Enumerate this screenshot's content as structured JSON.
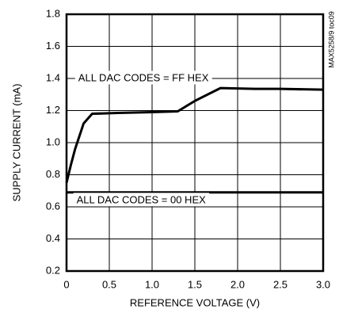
{
  "chart_data": {
    "type": "line",
    "x_label": "REFERENCE VOLTAGE (V)",
    "y_label": "SUPPLY CURRENT (mA)",
    "side_note": "MAX5258/9 toc09",
    "series": [
      {
        "name": "ALL DAC CODES = FF HEX",
        "color": "#000000",
        "x": [
          0,
          0.05,
          0.1,
          0.2,
          0.3,
          0.6,
          1.0,
          1.3,
          1.5,
          1.8,
          2.2,
          2.5,
          3.0
        ],
        "values": [
          0.75,
          0.86,
          0.96,
          1.12,
          1.18,
          1.185,
          1.19,
          1.195,
          1.26,
          1.34,
          1.335,
          1.335,
          1.33
        ]
      },
      {
        "name": "ALL DAC CODES = 00 HEX",
        "color": "#000000",
        "x": [
          0,
          3.0
        ],
        "values": [
          0.69,
          0.69
        ]
      }
    ],
    "xlim": [
      0,
      3.0
    ],
    "xticks": [
      0,
      0.5,
      {
        "value": 1,
        "label": "1.0"
      },
      1.5,
      {
        "value": 2,
        "label": "2.0"
      },
      2.5,
      {
        "value": 3,
        "label": "3.0"
      }
    ],
    "ylim": [
      0.2,
      1.8
    ],
    "yticks": [
      0.2,
      0.4,
      0.6,
      0.8,
      {
        "value": 1,
        "label": "1.0"
      },
      1.2,
      1.4,
      1.6,
      1.8
    ],
    "grid": true
  }
}
